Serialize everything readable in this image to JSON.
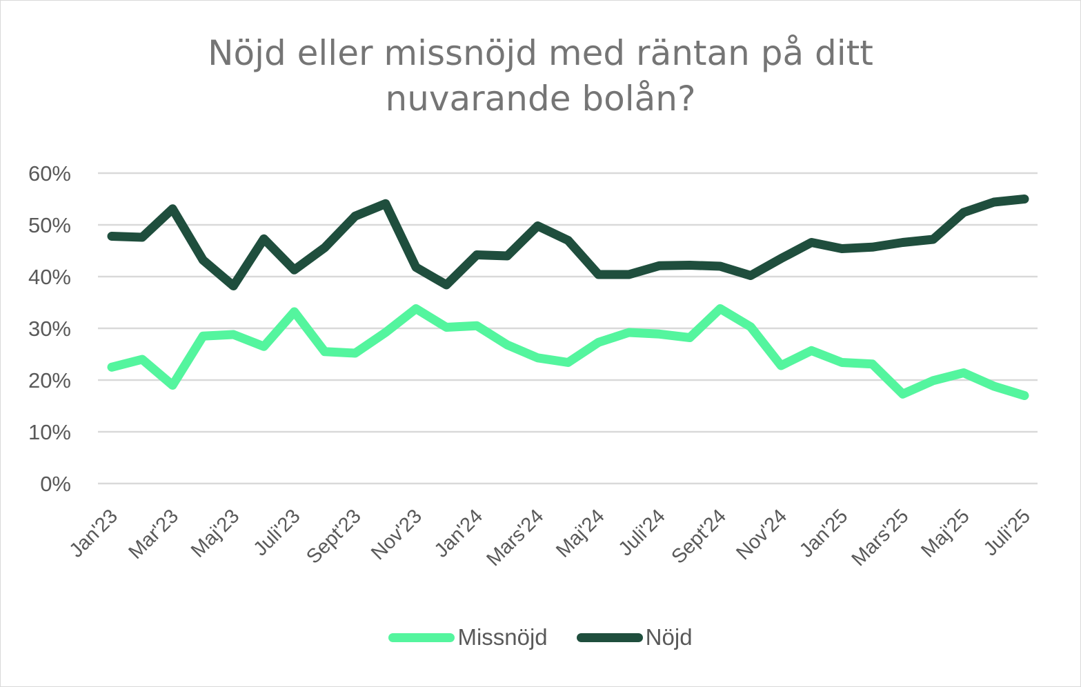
{
  "chart_data": {
    "type": "line",
    "title_lines": [
      "Nöjd eller missnöjd med räntan på ditt",
      "nuvarande bolån?"
    ],
    "x_labels": [
      "Jan'23",
      "Mar'23",
      "Maj'23",
      "Juli'23",
      "Sept'23",
      "Nov'23",
      "Jan'24",
      "Mars'24",
      "Maj'24",
      "Juli'24",
      "Sept'24",
      "Nov'24",
      "Jan'25",
      "Mars'25",
      "Maj'25",
      "Juli'25"
    ],
    "n_points": 31,
    "yticks": [
      "0%",
      "10%",
      "20%",
      "30%",
      "40%",
      "50%",
      "60%"
    ],
    "ylim": [
      0,
      60
    ],
    "grid": true,
    "legend_position": "bottom",
    "series": [
      {
        "name": "Missnöjd",
        "color": "#54f59e",
        "values": [
          22.5,
          24,
          19,
          28.5,
          28.8,
          26.5,
          33.2,
          25.5,
          25.2,
          29.2,
          33.8,
          30.2,
          30.5,
          26.8,
          24.3,
          23.4,
          27.3,
          29.2,
          28.9,
          28.2,
          33.8,
          30.3,
          22.8,
          25.7,
          23.4,
          23.1,
          17.3,
          19.9,
          21.4,
          18.8,
          17
        ]
      },
      {
        "name": "Nöjd",
        "color": "#1f4e3d",
        "values": [
          47.8,
          47.6,
          53.1,
          43.2,
          38.2,
          47.3,
          41.3,
          45.6,
          51.7,
          54.1,
          41.8,
          38.4,
          44.2,
          44,
          49.8,
          47,
          40.4,
          40.4,
          42.1,
          42.2,
          42,
          40.2,
          43.5,
          46.6,
          45.4,
          45.7,
          46.6,
          47.2,
          52.4,
          54.4,
          55
        ]
      }
    ]
  }
}
